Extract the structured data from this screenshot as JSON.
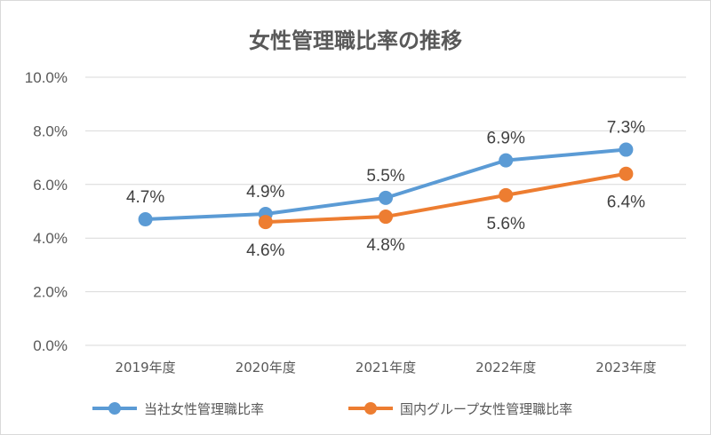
{
  "chart_data": {
    "type": "line",
    "title": "女性管理職比率の推移",
    "categories": [
      "2019年度",
      "2020年度",
      "2021年度",
      "2022年度",
      "2023年度"
    ],
    "y_ticks": [
      "0.0%",
      "2.0%",
      "4.0%",
      "6.0%",
      "8.0%",
      "10.0%"
    ],
    "ylim": [
      0,
      10
    ],
    "grid": true,
    "legend_position": "bottom",
    "series": [
      {
        "name": "当社女性管理職比率",
        "color": "#5b9bd5",
        "values": [
          4.7,
          4.9,
          5.5,
          6.9,
          7.3
        ],
        "labels": [
          "4.7%",
          "4.9%",
          "5.5%",
          "6.9%",
          "7.3%"
        ],
        "label_position": "above"
      },
      {
        "name": "国内グループ女性管理職比率",
        "color": "#ed7d31",
        "values": [
          null,
          4.6,
          4.8,
          5.6,
          6.4
        ],
        "labels": [
          "",
          "4.6%",
          "4.8%",
          "5.6%",
          "6.4%"
        ],
        "label_position": "below"
      }
    ]
  }
}
